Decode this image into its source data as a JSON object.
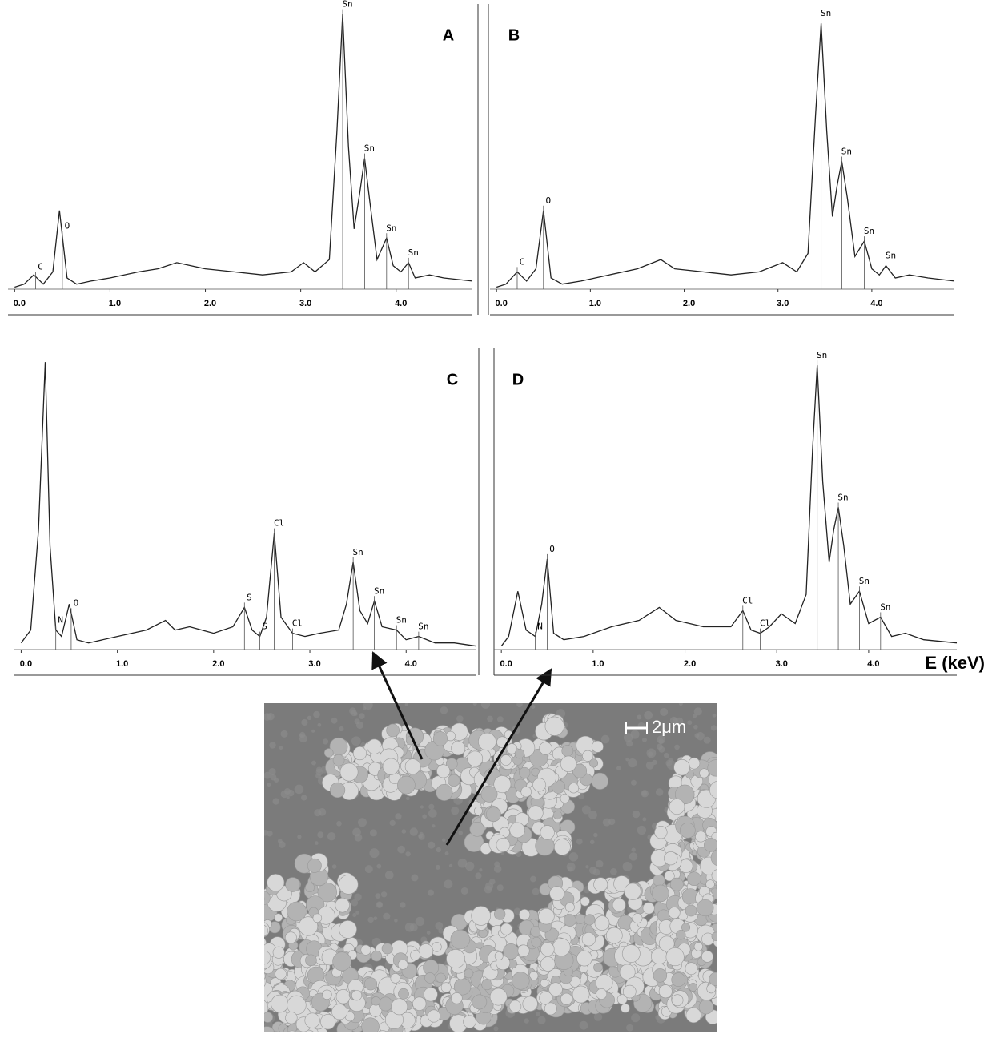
{
  "chart_data": [
    {
      "type": "line",
      "title": "A",
      "color": "#222222",
      "xlim": [
        -0.07,
        4.8
      ],
      "ylim": [
        0,
        100
      ],
      "xticks": [
        {
          "value": 0,
          "label": "0.0"
        },
        {
          "value": 1,
          "label": "1.0"
        },
        {
          "value": 2,
          "label": "2.0"
        },
        {
          "value": 3,
          "label": "3.0"
        },
        {
          "value": 4,
          "label": "4.0"
        }
      ],
      "x": [
        0.0,
        0.1,
        0.2,
        0.3,
        0.4,
        0.47,
        0.55,
        0.65,
        0.8,
        1.0,
        1.3,
        1.5,
        1.7,
        2.0,
        2.3,
        2.6,
        2.9,
        3.03,
        3.15,
        3.3,
        3.38,
        3.44,
        3.5,
        3.56,
        3.62,
        3.67,
        3.72,
        3.8,
        3.9,
        3.97,
        4.05,
        4.13,
        4.2,
        4.35,
        4.5,
        4.8
      ],
      "values": [
        9,
        10,
        13,
        10,
        14,
        34,
        12,
        10,
        11,
        12,
        14,
        15,
        17,
        15,
        14,
        13,
        14,
        17,
        14,
        18,
        60,
        98,
        55,
        28,
        40,
        51,
        38,
        18,
        25,
        16,
        14,
        17,
        12,
        13,
        12,
        11
      ],
      "annotations": [
        {
          "text": "C",
          "x": 0.22
        },
        {
          "text": "O",
          "x": 0.5
        },
        {
          "text": "Sn",
          "x": 3.44
        },
        {
          "text": "Sn",
          "x": 3.67
        },
        {
          "text": "Sn",
          "x": 3.9
        },
        {
          "text": "Sn",
          "x": 4.13
        }
      ]
    },
    {
      "type": "line",
      "title": "B",
      "color": "#222222",
      "xlim": [
        -0.07,
        4.88
      ],
      "ylim": [
        0,
        100
      ],
      "xticks": [
        {
          "value": 0,
          "label": "0.0"
        },
        {
          "value": 1,
          "label": "1.0"
        },
        {
          "value": 2,
          "label": "2.0"
        },
        {
          "value": 3,
          "label": "3.0"
        },
        {
          "value": 4,
          "label": "4.0"
        }
      ],
      "x": [
        0.0,
        0.1,
        0.22,
        0.32,
        0.42,
        0.5,
        0.58,
        0.7,
        0.9,
        1.2,
        1.5,
        1.75,
        1.9,
        2.2,
        2.5,
        2.8,
        3.05,
        3.2,
        3.32,
        3.4,
        3.46,
        3.52,
        3.58,
        3.63,
        3.68,
        3.74,
        3.82,
        3.92,
        4.0,
        4.08,
        4.15,
        4.25,
        4.4,
        4.6,
        4.88
      ],
      "values": [
        9,
        10,
        14,
        11,
        15,
        34,
        12,
        10,
        11,
        13,
        15,
        18,
        15,
        14,
        13,
        14,
        17,
        14,
        20,
        65,
        95,
        60,
        32,
        42,
        50,
        38,
        19,
        24,
        15,
        13,
        16,
        12,
        13,
        12,
        11
      ],
      "annotations": [
        {
          "text": "C",
          "x": 0.22
        },
        {
          "text": "O",
          "x": 0.5
        },
        {
          "text": "Sn",
          "x": 3.46
        },
        {
          "text": "Sn",
          "x": 3.68
        },
        {
          "text": "Sn",
          "x": 3.92
        },
        {
          "text": "Sn",
          "x": 4.15
        }
      ]
    },
    {
      "type": "line",
      "title": "C",
      "color": "#222222",
      "xlim": [
        -0.07,
        4.73
      ],
      "ylim": [
        0,
        100
      ],
      "xticks": [
        {
          "value": 0,
          "label": "0.0"
        },
        {
          "value": 1,
          "label": "1.0"
        },
        {
          "value": 2,
          "label": "2.0"
        },
        {
          "value": 3,
          "label": "3.0"
        },
        {
          "value": 4,
          "label": "4.0"
        }
      ],
      "x": [
        0.0,
        0.1,
        0.18,
        0.25,
        0.3,
        0.36,
        0.42,
        0.5,
        0.58,
        0.7,
        1.0,
        1.3,
        1.5,
        1.6,
        1.75,
        2.0,
        2.2,
        2.32,
        2.4,
        2.48,
        2.55,
        2.63,
        2.7,
        2.82,
        2.95,
        3.1,
        3.3,
        3.38,
        3.45,
        3.52,
        3.6,
        3.67,
        3.75,
        3.9,
        4.0,
        4.13,
        4.3,
        4.5,
        4.73
      ],
      "values": [
        10,
        14,
        45,
        97,
        40,
        14,
        12,
        22,
        11,
        10,
        12,
        14,
        17,
        14,
        15,
        13,
        15,
        21,
        14,
        12,
        18,
        44,
        18,
        13,
        12,
        13,
        14,
        22,
        35,
        20,
        16,
        23,
        15,
        14,
        11,
        12,
        10,
        10,
        9
      ],
      "annotations": [
        {
          "text": "N",
          "x": 0.36
        },
        {
          "text": "O",
          "x": 0.52
        },
        {
          "text": "S",
          "x": 2.32
        },
        {
          "text": "S",
          "x": 2.48
        },
        {
          "text": "Cl",
          "x": 2.63
        },
        {
          "text": "Cl",
          "x": 2.82
        },
        {
          "text": "Sn",
          "x": 3.45
        },
        {
          "text": "Sn",
          "x": 3.67
        },
        {
          "text": "Sn",
          "x": 3.9
        },
        {
          "text": "Sn",
          "x": 4.13
        }
      ]
    },
    {
      "type": "line",
      "title": "D",
      "color": "#222222",
      "xlim": [
        -0.08,
        4.96
      ],
      "ylim": [
        0,
        100
      ],
      "xlabel": "E (keV)",
      "xticks": [
        {
          "value": 0,
          "label": "0.0"
        },
        {
          "value": 1,
          "label": "1.0"
        },
        {
          "value": 2,
          "label": "2.0"
        },
        {
          "value": 3,
          "label": "3.0"
        },
        {
          "value": 4,
          "label": "4.0"
        }
      ],
      "x": [
        0.0,
        0.08,
        0.18,
        0.27,
        0.37,
        0.44,
        0.5,
        0.57,
        0.68,
        0.9,
        1.2,
        1.5,
        1.72,
        1.9,
        2.2,
        2.5,
        2.63,
        2.72,
        2.82,
        2.92,
        3.05,
        3.2,
        3.32,
        3.39,
        3.44,
        3.5,
        3.57,
        3.62,
        3.67,
        3.73,
        3.8,
        3.9,
        4.0,
        4.13,
        4.25,
        4.4,
        4.6,
        4.96
      ],
      "values": [
        9,
        12,
        26,
        14,
        12,
        22,
        36,
        13,
        11,
        12,
        15,
        17,
        21,
        17,
        15,
        15,
        20,
        14,
        13,
        15,
        19,
        16,
        25,
        70,
        96,
        60,
        35,
        45,
        52,
        40,
        22,
        26,
        16,
        18,
        12,
        13,
        11,
        10
      ],
      "annotations": [
        {
          "text": "N",
          "x": 0.37
        },
        {
          "text": "O",
          "x": 0.5
        },
        {
          "text": "Cl",
          "x": 2.63
        },
        {
          "text": "Cl",
          "x": 2.82
        },
        {
          "text": "Sn",
          "x": 3.44
        },
        {
          "text": "Sn",
          "x": 3.67
        },
        {
          "text": "Sn",
          "x": 3.9
        },
        {
          "text": "Sn",
          "x": 4.13
        }
      ]
    }
  ],
  "image": {
    "scale_bar": "2μm"
  }
}
